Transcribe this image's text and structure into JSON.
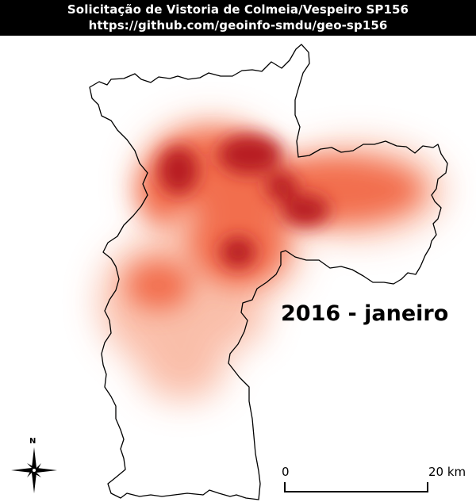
{
  "header": {
    "title": "Solicitação de Vistoria de Colmeia/Vespeiro SP156",
    "url": "https://github.com/geoinfo-smdu/geo-sp156"
  },
  "map": {
    "period_label": "2016 - janeiro",
    "north_label": "N",
    "north_icon": "compass-rose-icon",
    "scale_start": "0",
    "scale_end": "20 km",
    "colors": {
      "boundary": "#000000",
      "heat_low": "#fde0d2",
      "heat_mid": "#f05a3c",
      "heat_high": "#a8121a"
    }
  }
}
